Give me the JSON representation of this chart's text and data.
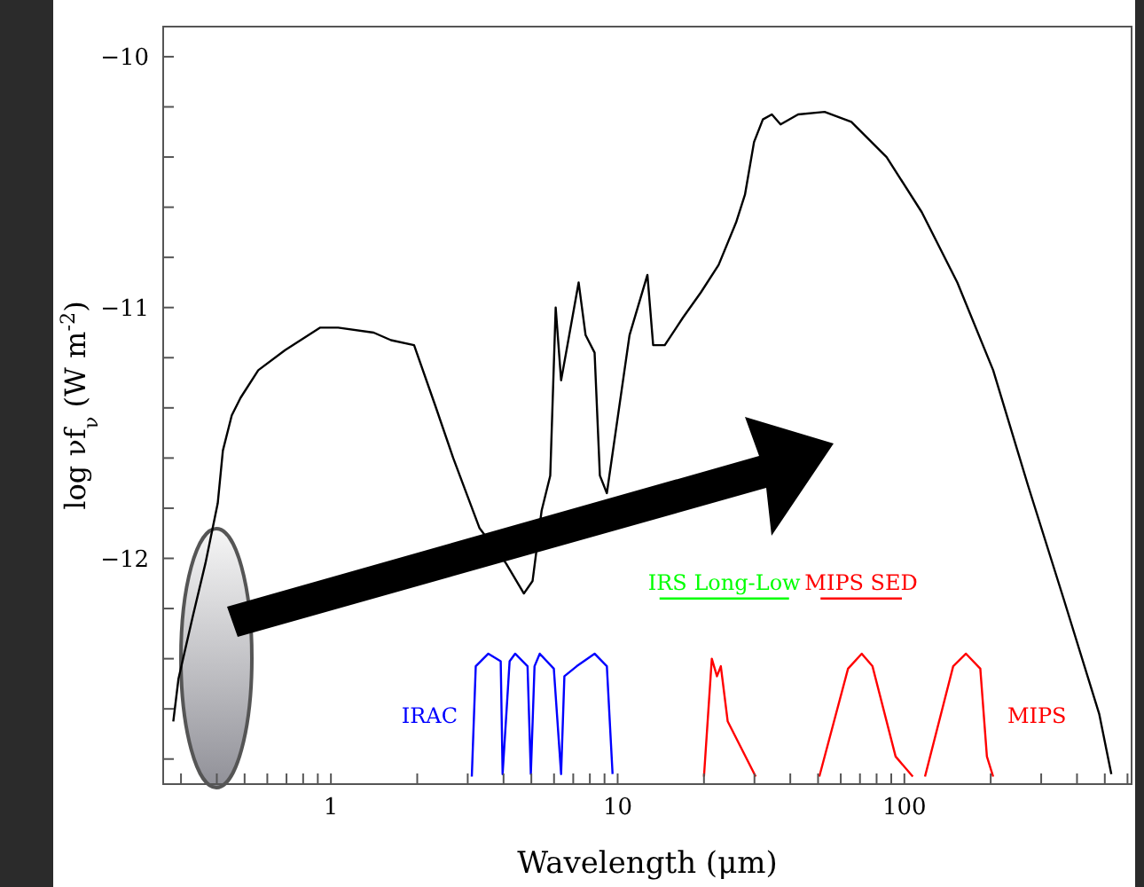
{
  "chart_data": {
    "type": "line",
    "xlabel": "Wavelength (μm)",
    "ylabel": "log νf$_{ν}$ (W m$^{-2}$)",
    "log": "x",
    "xlim": [
      0.26,
      620
    ],
    "ylim": [
      -12.9,
      -9.88
    ],
    "xticks": [
      {
        "value": 0.3,
        "label": null
      },
      {
        "value": 0.4,
        "label": null
      },
      {
        "value": 0.5,
        "label": null
      },
      {
        "value": 0.6,
        "label": null
      },
      {
        "value": 0.7,
        "label": null
      },
      {
        "value": 0.8,
        "label": null
      },
      {
        "value": 0.9,
        "label": null
      },
      1,
      {
        "value": 2,
        "label": null
      },
      {
        "value": 3,
        "label": null
      },
      {
        "value": 4,
        "label": null
      },
      {
        "value": 5,
        "label": null
      },
      {
        "value": 6,
        "label": null
      },
      {
        "value": 7,
        "label": null
      },
      {
        "value": 8,
        "label": null
      },
      {
        "value": 9,
        "label": null
      },
      10,
      {
        "value": 20,
        "label": null
      },
      {
        "value": 30,
        "label": null
      },
      {
        "value": 40,
        "label": null
      },
      {
        "value": 50,
        "label": null
      },
      {
        "value": 60,
        "label": null
      },
      {
        "value": 70,
        "label": null
      },
      {
        "value": 80,
        "label": null
      },
      {
        "value": 90,
        "label": null
      },
      100,
      {
        "value": 200,
        "label": null
      },
      {
        "value": 300,
        "label": null
      },
      {
        "value": 400,
        "label": null
      },
      {
        "value": 500,
        "label": null
      },
      {
        "value": 600,
        "label": null
      }
    ],
    "yticks": [
      -10,
      {
        "value": -10.2,
        "label": null
      },
      {
        "value": -10.4,
        "label": null
      },
      {
        "value": -10.6,
        "label": null
      },
      {
        "value": -10.8,
        "label": null
      },
      -11,
      {
        "value": -11.2,
        "label": null
      },
      {
        "value": -11.4,
        "label": null
      },
      {
        "value": -11.6,
        "label": null
      },
      {
        "value": -11.8,
        "label": null
      },
      -12,
      {
        "value": -12.2,
        "label": null
      },
      {
        "value": -12.4,
        "label": null
      },
      {
        "value": -12.6,
        "label": null
      },
      {
        "value": -12.8,
        "label": null
      }
    ],
    "marker": "none",
    "line_style": "solid",
    "series": [
      {
        "color": "#000000",
        "x": [
          0.282,
          0.294,
          0.33,
          0.365,
          0.403,
          0.42,
          0.451,
          0.484,
          0.558,
          0.692,
          0.918,
          1.06,
          1.41,
          1.62,
          1.95,
          2.31,
          2.67,
          3.3,
          4.08,
          4.71,
          5.05,
          5.43,
          5.82,
          6.08,
          6.35,
          6.61,
          7.31,
          7.73,
          8.31,
          8.67,
          9.17,
          11.0,
          12.7,
          13.3,
          14.6,
          16.9,
          19.5,
          22.5,
          25.9,
          27.8,
          29.9,
          32.1,
          34.5,
          37.0,
          42.6,
          52.7,
          65.3,
          86.7,
          115,
          153,
          204,
          270,
          359,
          478,
          527
        ],
        "values": [
          -12.65,
          -12.48,
          -12.23,
          -12.02,
          -11.78,
          -11.57,
          -11.43,
          -11.36,
          -11.25,
          -11.17,
          -11.08,
          -11.08,
          -11.1,
          -11.13,
          -11.15,
          -11.39,
          -11.6,
          -11.88,
          -12.02,
          -12.14,
          -12.09,
          -11.81,
          -11.67,
          -11.0,
          -11.29,
          -11.18,
          -10.9,
          -11.11,
          -11.18,
          -11.67,
          -11.74,
          -11.11,
          -10.87,
          -11.15,
          -11.15,
          -11.04,
          -10.94,
          -10.83,
          -10.66,
          -10.55,
          -10.34,
          -10.25,
          -10.23,
          -10.27,
          -10.23,
          -10.22,
          -10.26,
          -10.4,
          -10.62,
          -10.9,
          -11.25,
          -11.71,
          -12.16,
          -12.62,
          -12.86
        ]
      },
      {
        "name": "IRAC",
        "color": "#0000ff",
        "x": [
          3.1,
          3.2,
          3.54,
          3.91,
          3.97,
          4.2,
          4.39,
          4.85,
          4.98,
          5.13,
          5.35,
          5.99,
          6.35,
          6.52,
          7.2,
          8.31,
          9.17,
          9.6
        ],
        "values": [
          -12.87,
          -12.43,
          -12.38,
          -12.41,
          -12.86,
          -12.41,
          -12.38,
          -12.43,
          -12.86,
          -12.43,
          -12.38,
          -12.44,
          -12.86,
          -12.47,
          -12.43,
          -12.38,
          -12.43,
          -12.86
        ]
      },
      {
        "name": "MIPS",
        "color": "#ff0000",
        "x": [
          20,
          21.3,
          22.2,
          22.9,
          24.2,
          30.3,
          40,
          50.5,
          63.6,
          71.0,
          77.4,
          93.2,
          107,
          112,
          118,
          148,
          164,
          184,
          194,
          204
        ],
        "values": [
          -12.87,
          -12.4,
          -12.47,
          -12.43,
          -12.65,
          -12.87,
          null,
          -12.87,
          -12.44,
          -12.38,
          -12.43,
          -12.79,
          -12.87,
          null,
          -12.87,
          -12.43,
          -12.38,
          -12.44,
          -12.79,
          -12.87
        ]
      },
      {
        "name": "IRS Long-Low",
        "color": "#00ff00",
        "x": [
          14,
          39.6
        ],
        "values": [
          -12.16,
          -12.16
        ]
      },
      {
        "name": "MIPS SED",
        "color": "#ff0000",
        "x": [
          51,
          98
        ],
        "values": [
          -12.16,
          -12.16
        ]
      }
    ]
  }
}
